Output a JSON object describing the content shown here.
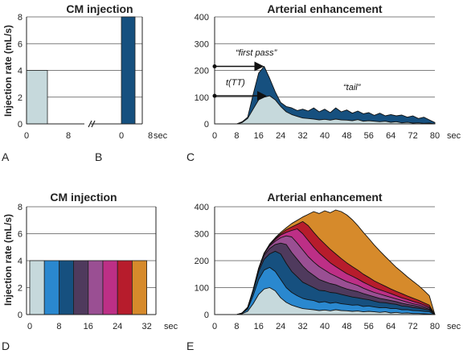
{
  "colors": {
    "light": "#c6d9dc",
    "dark_blue": "#16507f",
    "bright_blue": "#2a88cf",
    "dark_purple": "#4f3a5d",
    "violet": "#9a4f93",
    "magenta": "#bd2f86",
    "red": "#b71c2c",
    "orange": "#d68a2b",
    "axis": "#222222"
  },
  "ylabel": "Injection rate (mL/s)",
  "panels": {
    "A": "A",
    "B": "B",
    "C": "C",
    "D": "D",
    "E": "E"
  },
  "chart_data": [
    {
      "id": "AB",
      "type": "bar",
      "title": "CM injection",
      "ylabel": "Injection rate (mL/s)",
      "ylim": [
        0,
        8
      ],
      "yticks": [
        "0",
        "2",
        "4",
        "6",
        "8"
      ],
      "grid": true,
      "axis_break": true,
      "xticks_A": [
        "0",
        "8"
      ],
      "xticks_B": [
        "0",
        "8"
      ],
      "xunit": "sec",
      "bars": [
        {
          "panel": "A",
          "x0": 0,
          "x1": 4,
          "value": 4,
          "color": "light"
        },
        {
          "panel": "B",
          "x0": 0,
          "x1": 2,
          "value": 8,
          "color": "dark_blue"
        }
      ]
    },
    {
      "id": "C",
      "type": "area",
      "title": "Arterial enhancement",
      "ylim": [
        0,
        400
      ],
      "yticks": [
        "0",
        "100",
        "200",
        "300",
        "400"
      ],
      "xlim": [
        0,
        80
      ],
      "xticks": [
        "0",
        "8",
        "16",
        "24",
        "32",
        "40",
        "48",
        "56",
        "64",
        "72",
        "80"
      ],
      "xunit": "sec",
      "grid": true,
      "annotations": {
        "first_pass": "“first pass”",
        "t_tt": "t(TT)",
        "tail": "“tail”"
      },
      "annotation_values": {
        "first_pass_y": 215,
        "t_tt_y": 105
      },
      "x": [
        0,
        8,
        10,
        12,
        14,
        16,
        18,
        20,
        22,
        24,
        26,
        28,
        30,
        32,
        34,
        36,
        38,
        40,
        42,
        44,
        46,
        48,
        50,
        52,
        54,
        56,
        58,
        60,
        62,
        64,
        66,
        68,
        70,
        72,
        74,
        76,
        78,
        80
      ],
      "series": [
        {
          "color": "light",
          "values": [
            0,
            0,
            5,
            20,
            55,
            90,
            100,
            105,
            90,
            65,
            45,
            35,
            28,
            22,
            20,
            18,
            15,
            17,
            14,
            18,
            15,
            14,
            12,
            16,
            10,
            12,
            10,
            8,
            10,
            6,
            8,
            4,
            6,
            3,
            4,
            2,
            3,
            0
          ]
        },
        {
          "color": "dark_blue",
          "values": [
            0,
            0,
            8,
            25,
            110,
            190,
            215,
            170,
            120,
            80,
            65,
            60,
            50,
            55,
            48,
            60,
            45,
            55,
            42,
            60,
            45,
            52,
            40,
            48,
            38,
            42,
            32,
            40,
            30,
            35,
            30,
            33,
            25,
            30,
            20,
            25,
            15,
            5
          ]
        }
      ]
    },
    {
      "id": "D",
      "type": "bar",
      "title": "CM injection",
      "ylabel": "Injection rate (mL/s)",
      "ylim": [
        0,
        8
      ],
      "yticks": [
        "0",
        "2",
        "4",
        "6",
        "8"
      ],
      "xlim": [
        0,
        34
      ],
      "xticks": [
        "0",
        "8",
        "16",
        "24",
        "32"
      ],
      "xunit": "sec",
      "grid": true,
      "bars": [
        {
          "x0": 0,
          "x1": 4,
          "value": 4,
          "color": "light"
        },
        {
          "x0": 4,
          "x1": 8,
          "value": 4,
          "color": "bright_blue"
        },
        {
          "x0": 8,
          "x1": 12,
          "value": 4,
          "color": "dark_blue"
        },
        {
          "x0": 12,
          "x1": 16,
          "value": 4,
          "color": "dark_purple"
        },
        {
          "x0": 16,
          "x1": 20,
          "value": 4,
          "color": "violet"
        },
        {
          "x0": 20,
          "x1": 24,
          "value": 4,
          "color": "magenta"
        },
        {
          "x0": 24,
          "x1": 28,
          "value": 4,
          "color": "red"
        },
        {
          "x0": 28,
          "x1": 32,
          "value": 4,
          "color": "orange"
        }
      ]
    },
    {
      "id": "E",
      "type": "area",
      "title": "Arterial enhancement",
      "ylim": [
        0,
        400
      ],
      "yticks": [
        "0",
        "100",
        "200",
        "300",
        "400"
      ],
      "xlim": [
        0,
        80
      ],
      "xticks": [
        "0",
        "8",
        "16",
        "24",
        "32",
        "40",
        "48",
        "56",
        "64",
        "72",
        "80"
      ],
      "xunit": "sec",
      "grid": true,
      "x": [
        0,
        8,
        10,
        12,
        14,
        16,
        18,
        20,
        22,
        24,
        26,
        28,
        30,
        32,
        34,
        36,
        38,
        40,
        42,
        44,
        46,
        48,
        50,
        52,
        54,
        56,
        58,
        60,
        62,
        64,
        66,
        68,
        70,
        72,
        74,
        76,
        78,
        80
      ],
      "series": [
        {
          "color": "light",
          "values": [
            0,
            0,
            3,
            12,
            40,
            75,
            95,
            100,
            88,
            62,
            45,
            35,
            28,
            22,
            20,
            18,
            15,
            17,
            14,
            18,
            15,
            14,
            12,
            13,
            10,
            12,
            10,
            8,
            10,
            6,
            8,
            5,
            6,
            4,
            4,
            3,
            2,
            0
          ]
        },
        {
          "color": "bright_blue",
          "values": [
            0,
            0,
            5,
            20,
            70,
            130,
            165,
            175,
            160,
            130,
            100,
            82,
            70,
            60,
            55,
            52,
            45,
            48,
            42,
            45,
            40,
            38,
            35,
            36,
            30,
            32,
            28,
            25,
            26,
            22,
            22,
            18,
            18,
            15,
            14,
            12,
            10,
            0
          ]
        },
        {
          "color": "dark_blue",
          "values": [
            0,
            0,
            6,
            25,
            85,
            160,
            205,
            225,
            235,
            225,
            190,
            160,
            140,
            120,
            110,
            100,
            90,
            88,
            82,
            80,
            75,
            70,
            65,
            62,
            58,
            55,
            50,
            45,
            44,
            40,
            38,
            32,
            30,
            26,
            24,
            20,
            16,
            0
          ]
        },
        {
          "color": "dark_purple",
          "values": [
            0,
            0,
            6,
            26,
            88,
            168,
            220,
            245,
            260,
            265,
            260,
            230,
            205,
            180,
            160,
            145,
            130,
            122,
            115,
            110,
            102,
            95,
            90,
            85,
            78,
            72,
            66,
            60,
            56,
            52,
            48,
            42,
            38,
            34,
            30,
            25,
            20,
            0
          ]
        },
        {
          "color": "violet",
          "values": [
            0,
            0,
            6,
            26,
            90,
            170,
            225,
            255,
            272,
            285,
            292,
            288,
            265,
            240,
            215,
            195,
            178,
            165,
            152,
            142,
            132,
            122,
            115,
            108,
            98,
            90,
            82,
            76,
            70,
            64,
            58,
            52,
            46,
            40,
            36,
            30,
            24,
            0
          ]
        },
        {
          "color": "magenta",
          "values": [
            0,
            0,
            6,
            27,
            92,
            172,
            228,
            258,
            278,
            295,
            305,
            312,
            318,
            300,
            275,
            250,
            228,
            210,
            192,
            178,
            165,
            152,
            142,
            132,
            120,
            110,
            100,
            92,
            85,
            78,
            70,
            62,
            56,
            49,
            43,
            36,
            28,
            0
          ]
        },
        {
          "color": "red",
          "values": [
            0,
            0,
            6,
            27,
            92,
            172,
            228,
            260,
            282,
            300,
            315,
            325,
            335,
            345,
            330,
            305,
            282,
            262,
            242,
            225,
            208,
            192,
            178,
            165,
            150,
            138,
            125,
            115,
            105,
            95,
            86,
            78,
            69,
            61,
            53,
            44,
            35,
            0
          ]
        },
        {
          "color": "orange",
          "values": [
            0,
            0,
            6,
            27,
            92,
            172,
            228,
            262,
            285,
            305,
            322,
            338,
            350,
            362,
            372,
            382,
            375,
            385,
            378,
            388,
            382,
            370,
            352,
            330,
            305,
            282,
            258,
            236,
            215,
            195,
            175,
            158,
            140,
            124,
            108,
            90,
            70,
            0
          ]
        }
      ]
    }
  ]
}
